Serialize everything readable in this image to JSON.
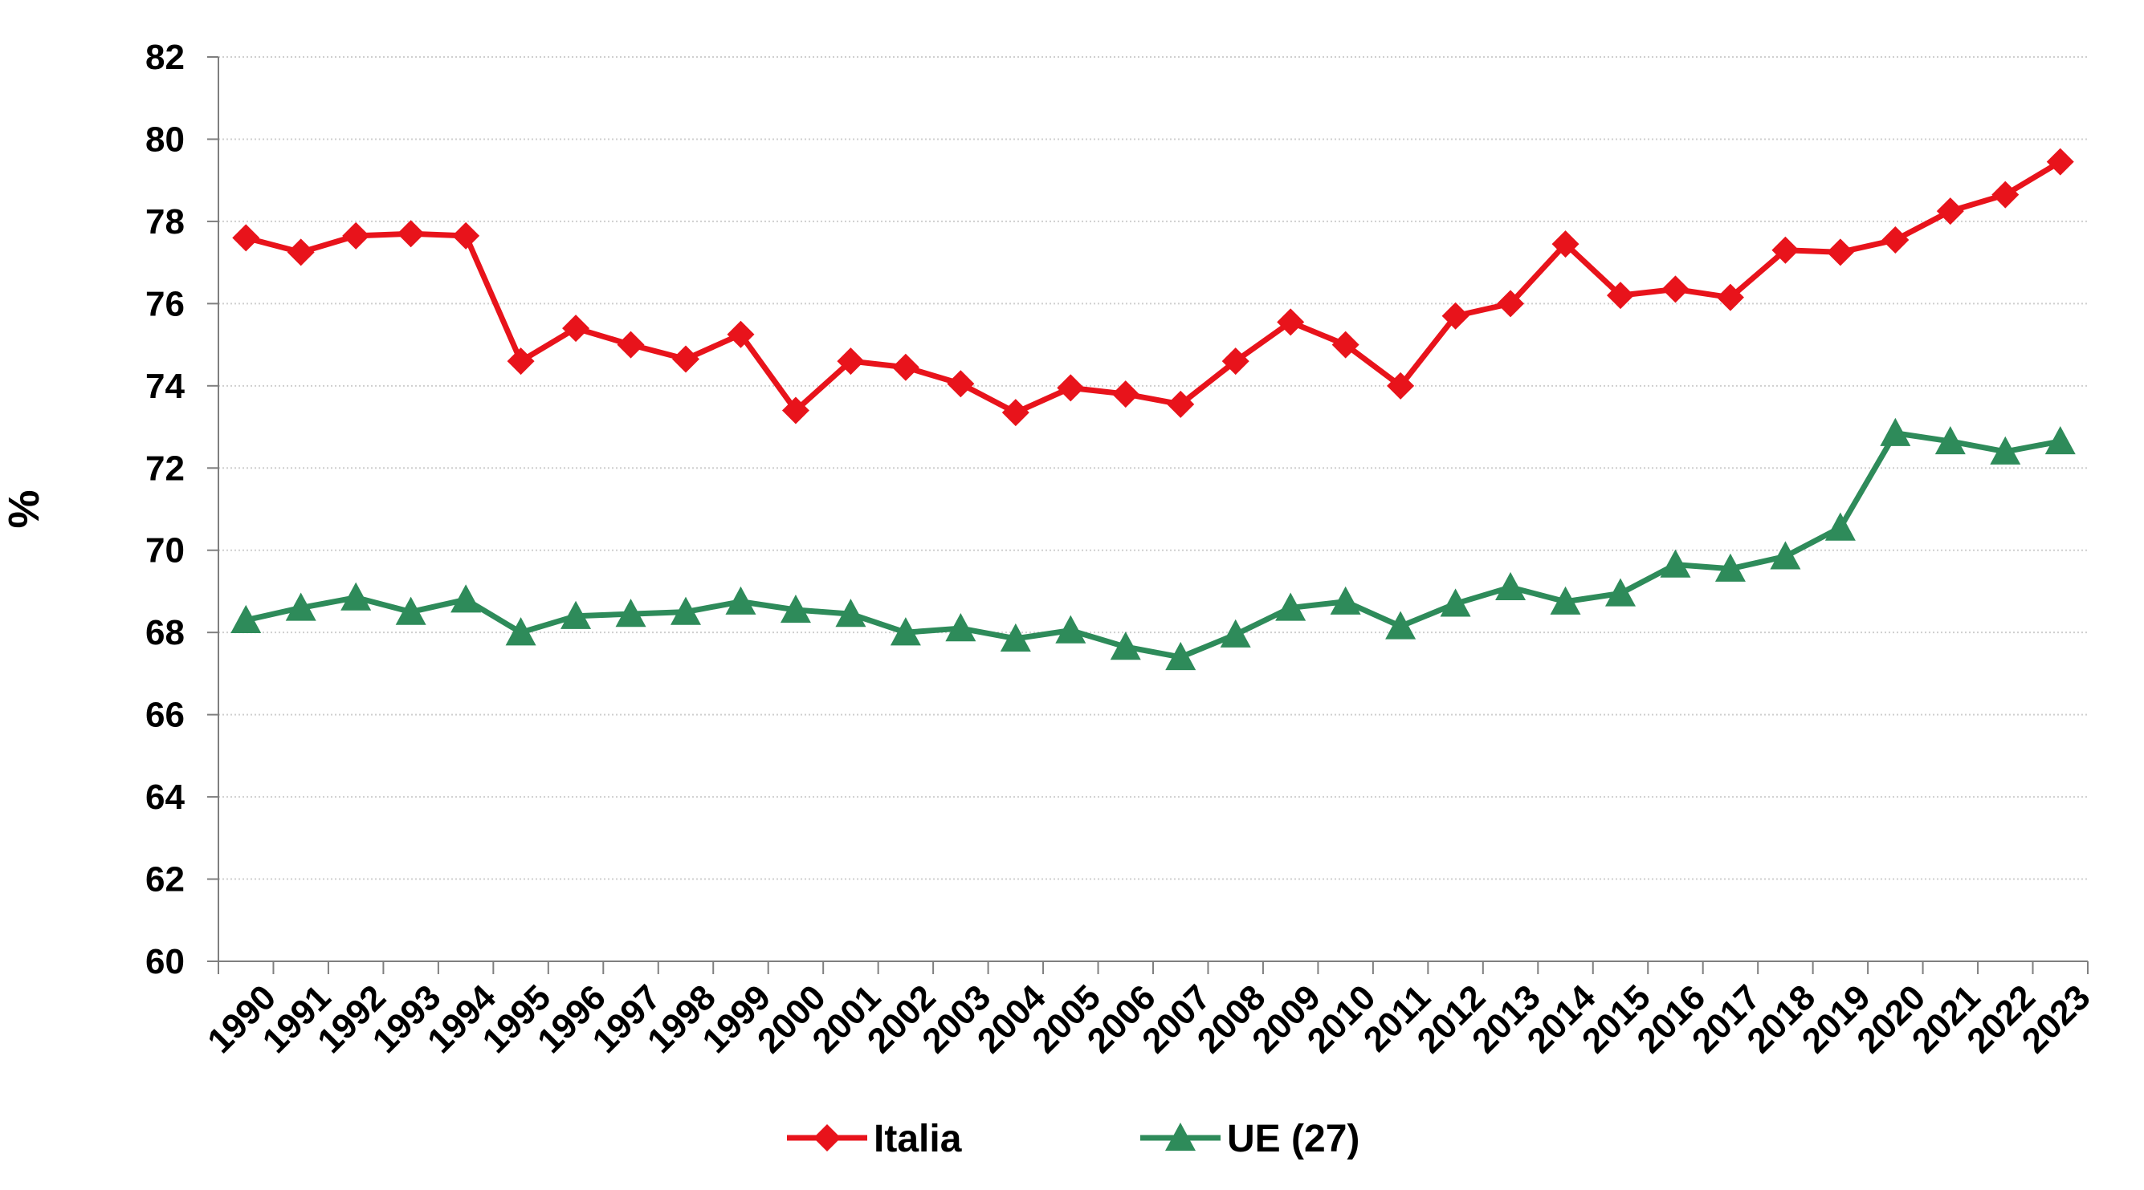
{
  "chart_data": {
    "type": "line",
    "title": "",
    "xlabel": "",
    "ylabel": "%",
    "ylim": [
      60,
      82
    ],
    "yticks": [
      60,
      62,
      64,
      66,
      68,
      70,
      72,
      74,
      76,
      78,
      80,
      82
    ],
    "grid": "horizontal",
    "legend_position": "bottom",
    "categories": [
      "1990",
      "1991",
      "1992",
      "1993",
      "1994",
      "1995",
      "1996",
      "1997",
      "1998",
      "1999",
      "2000",
      "2001",
      "2002",
      "2003",
      "2004",
      "2005",
      "2006",
      "2007",
      "2008",
      "2009",
      "2010",
      "2011",
      "2012",
      "2013",
      "2014",
      "2015",
      "2016",
      "2017",
      "2018",
      "2019",
      "2020",
      "2021",
      "2022",
      "2023"
    ],
    "series": [
      {
        "name": "Italia",
        "color": "#e8131b",
        "marker": "diamond",
        "values": [
          77.6,
          77.25,
          77.65,
          77.7,
          77.65,
          74.6,
          75.4,
          75.0,
          74.65,
          75.25,
          73.4,
          74.6,
          74.45,
          74.05,
          73.35,
          73.95,
          73.8,
          73.55,
          74.6,
          75.55,
          75.0,
          74.0,
          75.7,
          76.0,
          77.45,
          76.2,
          76.35,
          76.15,
          77.3,
          77.25,
          77.55,
          78.25,
          78.65,
          79.45
        ]
      },
      {
        "name": "UE (27)",
        "color": "#2e8b5a",
        "marker": "triangle",
        "values": [
          68.3,
          68.6,
          68.85,
          68.5,
          68.8,
          68.0,
          68.4,
          68.45,
          68.5,
          68.75,
          68.55,
          68.45,
          68.0,
          68.1,
          67.85,
          68.05,
          67.65,
          67.4,
          67.95,
          68.6,
          68.75,
          68.15,
          68.7,
          69.1,
          68.75,
          68.95,
          69.65,
          69.55,
          69.85,
          70.55,
          72.85,
          72.65,
          72.4,
          72.65
        ]
      }
    ]
  }
}
